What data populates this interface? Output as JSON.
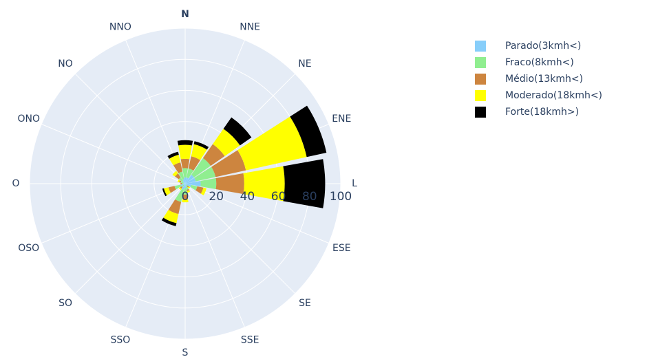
{
  "chart_data": {
    "type": "barpolar",
    "categories": [
      "N",
      "NNE",
      "NE",
      "ENE",
      "L",
      "ESE",
      "SE",
      "SSE",
      "S",
      "SSO",
      "SO",
      "OSO",
      "O",
      "ONO",
      "NO",
      "NNO"
    ],
    "series": [
      {
        "name": "Parado(3kmh<)",
        "color": "#87cefa",
        "values": [
          4,
          4,
          7,
          7,
          10,
          4,
          1,
          2,
          3,
          4,
          1,
          3,
          1,
          1,
          2,
          3
        ]
      },
      {
        "name": "Fraco(8kmh<)",
        "color": "#90ee90",
        "values": [
          6,
          6,
          13,
          13,
          10,
          4,
          1,
          2,
          4,
          8,
          2,
          4,
          1,
          2,
          3,
          5
        ]
      },
      {
        "name": "Médio(13kmh<)",
        "color": "#cd853f",
        "values": [
          6,
          8,
          11,
          20,
          18,
          4,
          1,
          1,
          3,
          8,
          1,
          4,
          1,
          1,
          3,
          6
        ]
      },
      {
        "name": "Moderado(18kmh<)",
        "color": "#ffff00",
        "values": [
          9,
          8,
          12,
          40,
          26,
          2,
          1,
          1,
          2,
          6,
          1,
          3,
          0,
          1,
          2,
          5
        ]
      },
      {
        "name": "Forte(18kmh>)",
        "color": "#000000",
        "values": [
          3,
          2,
          9,
          13,
          26,
          0,
          0,
          0,
          0,
          2,
          0,
          1,
          0,
          0,
          0,
          2
        ]
      }
    ],
    "rlim": [
      0,
      100
    ],
    "rticks": [
      0,
      20,
      40,
      60,
      80,
      100
    ],
    "grid": true,
    "legend": "top-right"
  }
}
